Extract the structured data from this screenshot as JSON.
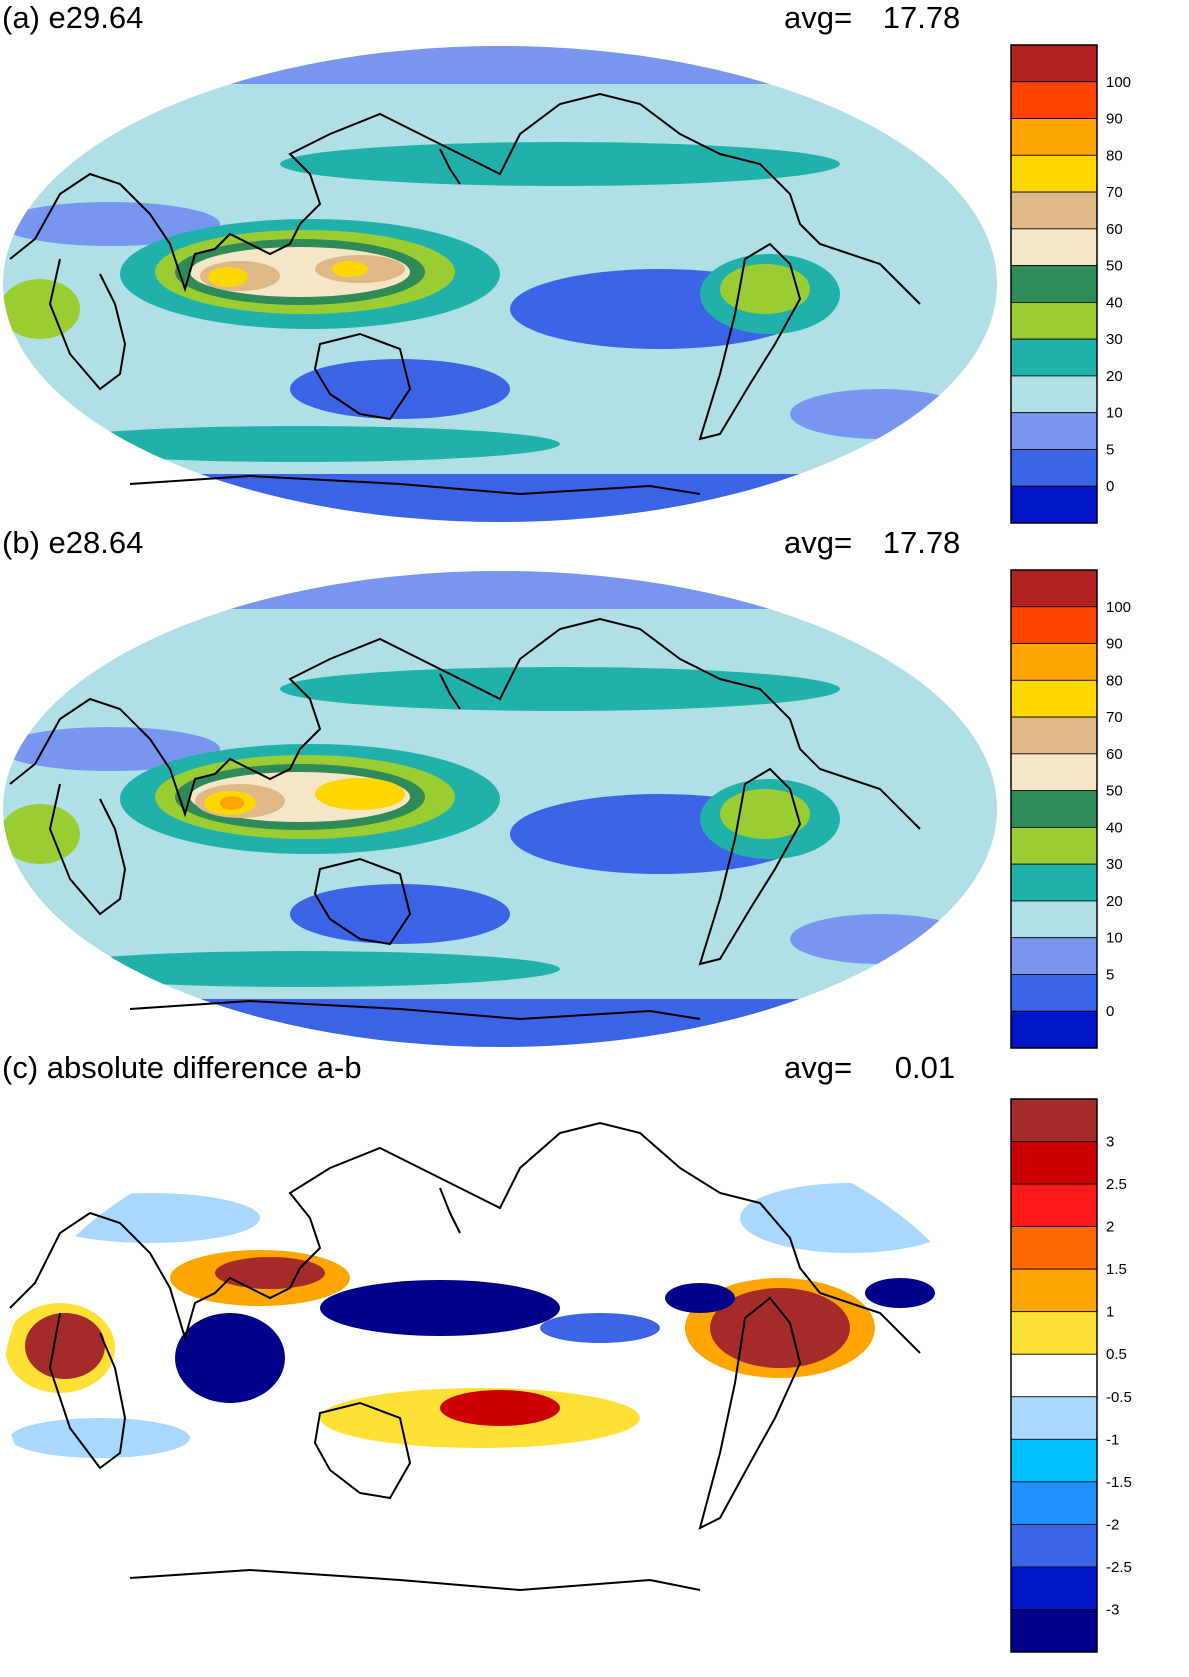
{
  "colors": {
    "coast": "#000000",
    "precip": [
      "#0014c8",
      "#3c64e6",
      "#7896f0",
      "#b0e0e6",
      "#20b2aa",
      "#9acd32",
      "#2e8b57",
      "#f5e6c8",
      "#deb887",
      "#ffd700",
      "#ffa500",
      "#ff4500",
      "#b22222"
    ],
    "diff": [
      "#00008b",
      "#0014c8",
      "#3c64e6",
      "#1e90ff",
      "#00bfff",
      "#a8d8ff",
      "#ffffff",
      "#ffe135",
      "#ffa500",
      "#ff6a00",
      "#ff1a1a",
      "#cc0000",
      "#a52a2a"
    ]
  },
  "panels": [
    {
      "title": "(a) e29.64",
      "avg_label": "avg=",
      "avg_value": "17.78",
      "colorbar": {
        "labels": [
          "100",
          "90",
          "80",
          "70",
          "60",
          "50",
          "40",
          "30",
          "20",
          "10",
          "5",
          "0"
        ]
      }
    },
    {
      "title": "(b) e28.64",
      "avg_label": "avg=",
      "avg_value": "17.78",
      "colorbar": {
        "labels": [
          "100",
          "90",
          "80",
          "70",
          "60",
          "50",
          "40",
          "30",
          "20",
          "10",
          "5",
          "0"
        ]
      }
    },
    {
      "title": "(c) absolute difference a-b",
      "avg_label": "avg=",
      "avg_value": "0.01",
      "colorbar": {
        "labels": [
          "3",
          "2.5",
          "2",
          "1.5",
          "1",
          "0.5",
          "-0.5",
          "-1",
          "-1.5",
          "-2",
          "-2.5",
          "-3"
        ]
      }
    }
  ]
}
